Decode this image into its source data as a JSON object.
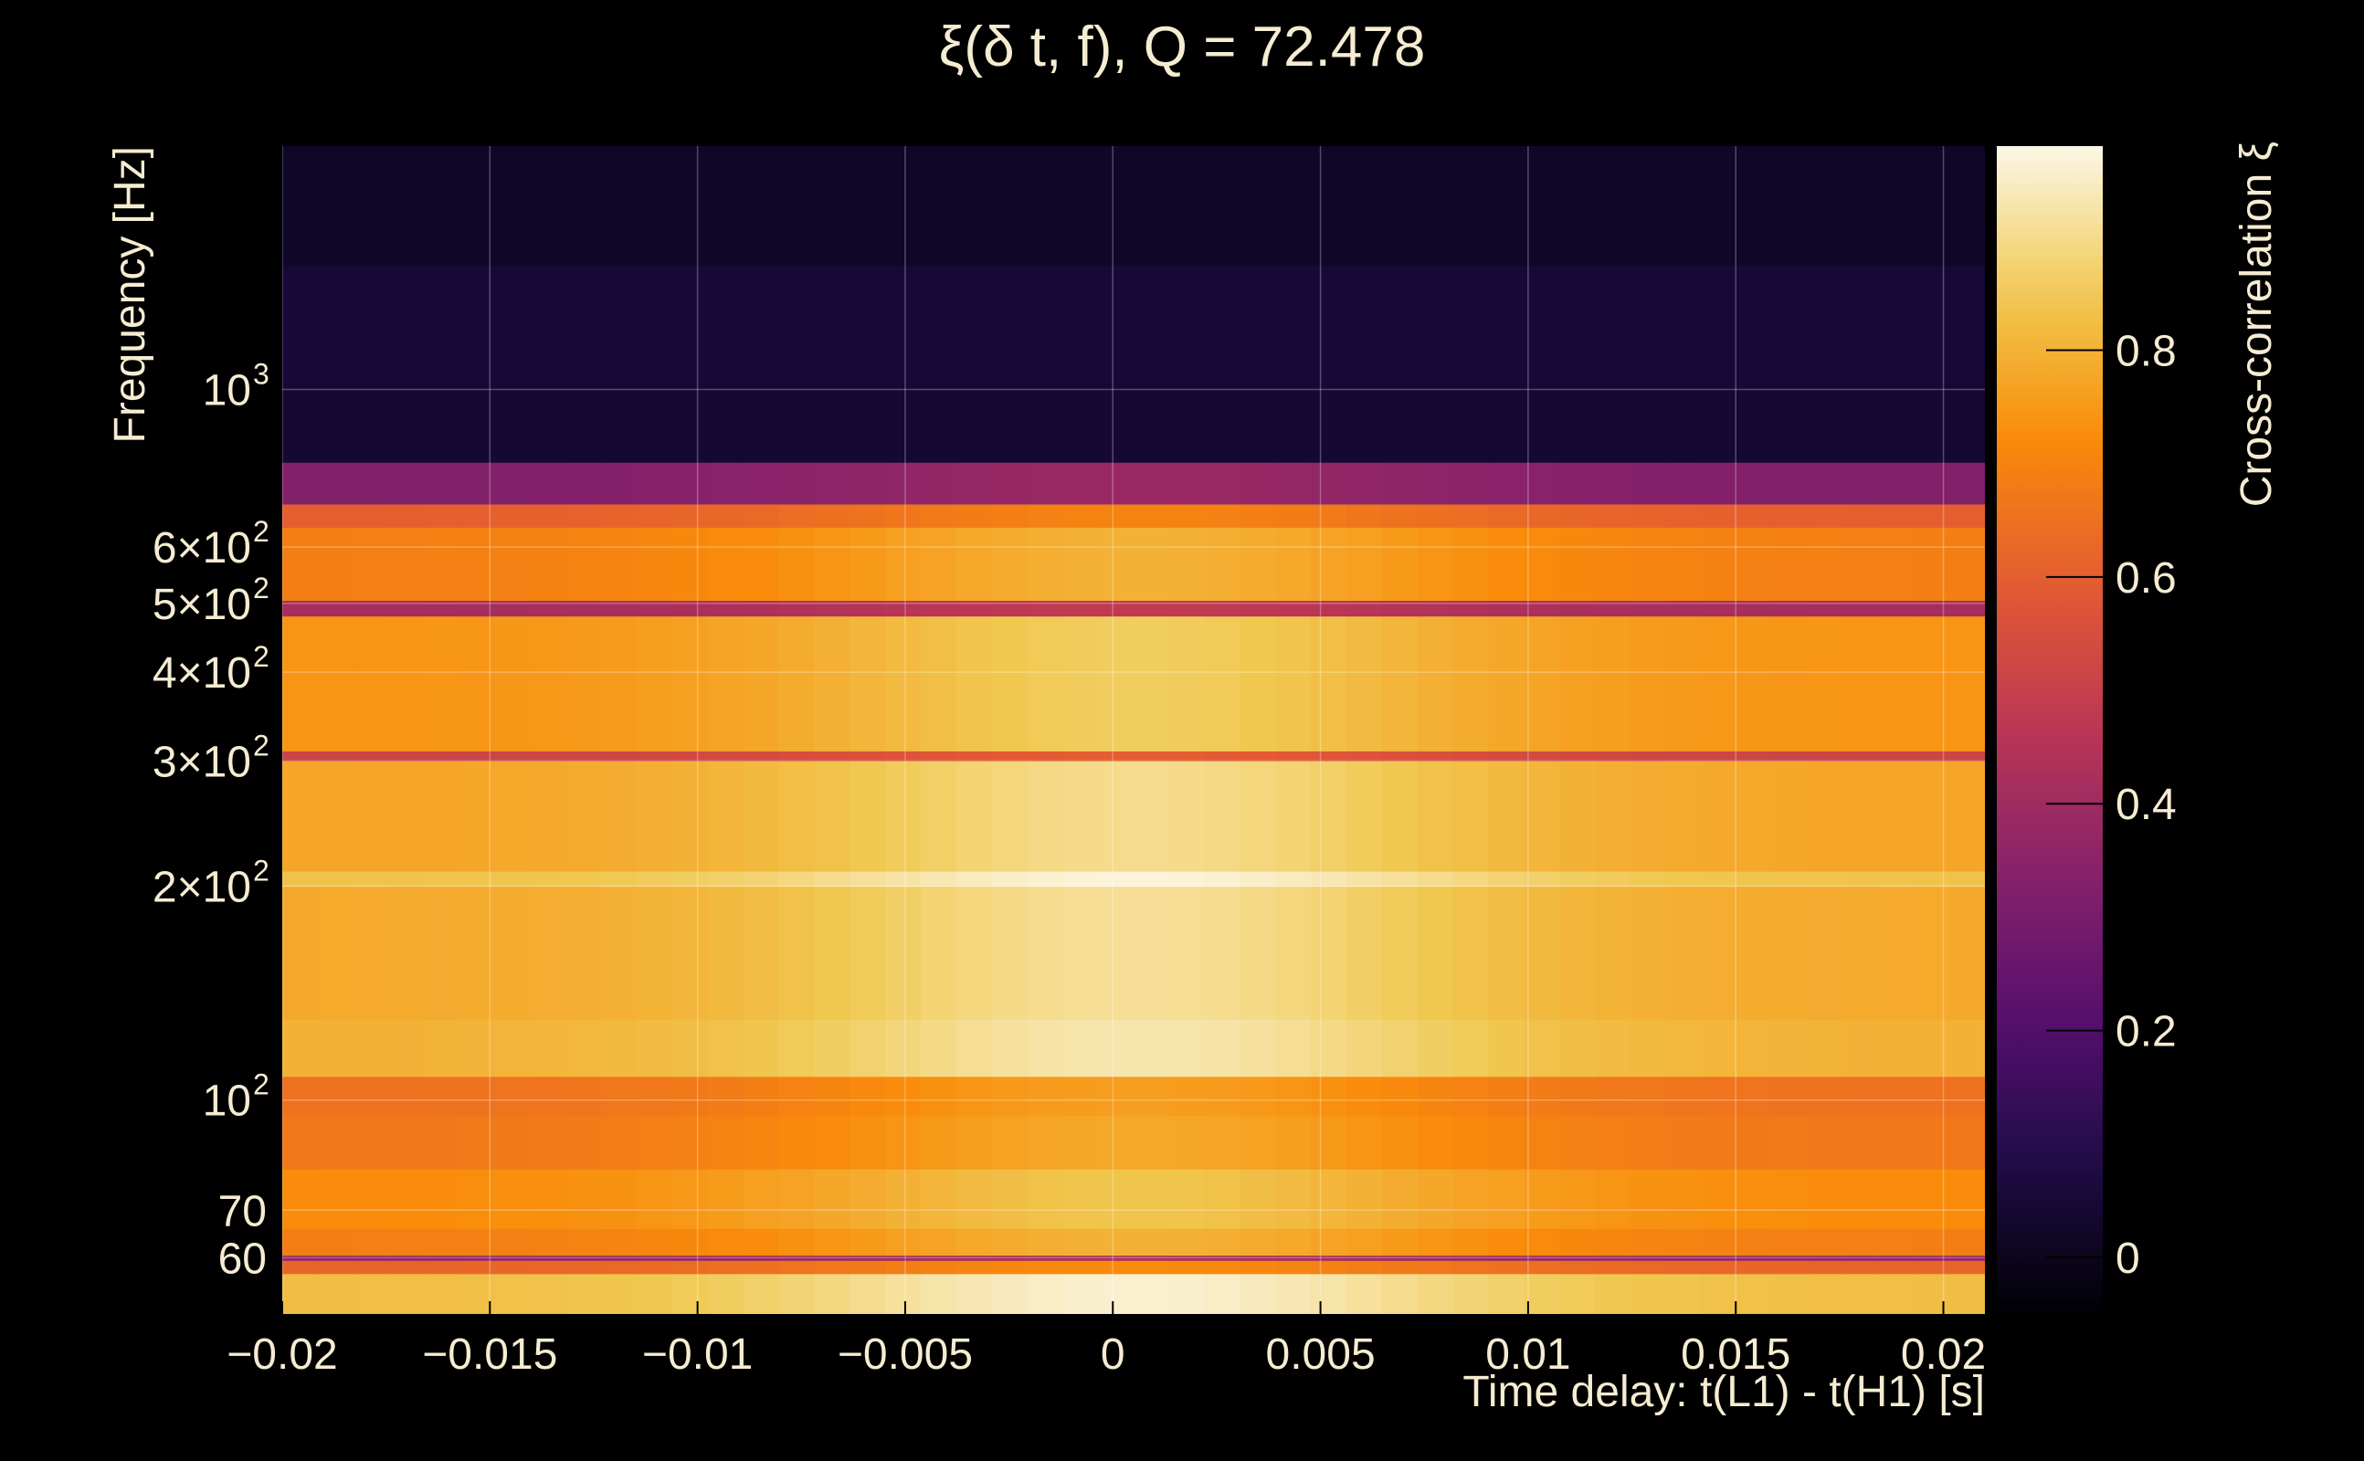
{
  "chart_data": {
    "type": "heatmap",
    "title": "ξ(δ t, f), Q = 72.478",
    "xlabel": "Time delay: t(L1) - t(H1) [s]",
    "ylabel": "Frequency [Hz]",
    "colorbar_label": "Cross-correlation ξ",
    "x_scale": "linear",
    "y_scale": "log",
    "xlim": [
      -0.02,
      0.021
    ],
    "ylim": [
      50,
      2200
    ],
    "clim": [
      -0.05,
      0.98
    ],
    "colormap": "inferno",
    "grid": true,
    "x_ticks": [
      {
        "value": -0.02,
        "label": "−0.02"
      },
      {
        "value": -0.015,
        "label": "−0.015"
      },
      {
        "value": -0.01,
        "label": "−0.01"
      },
      {
        "value": -0.005,
        "label": "−0.005"
      },
      {
        "value": 0,
        "label": "0"
      },
      {
        "value": 0.005,
        "label": "0.005"
      },
      {
        "value": 0.01,
        "label": "0.01"
      },
      {
        "value": 0.015,
        "label": "0.015"
      },
      {
        "value": 0.02,
        "label": "0.02"
      }
    ],
    "y_ticks": [
      {
        "value": 60,
        "base": "60",
        "exp": ""
      },
      {
        "value": 70,
        "base": "70",
        "exp": ""
      },
      {
        "value": 100,
        "base": "10",
        "exp": "2"
      },
      {
        "value": 200,
        "base": "2×10",
        "exp": "2"
      },
      {
        "value": 300,
        "base": "3×10",
        "exp": "2"
      },
      {
        "value": 400,
        "base": "4×10",
        "exp": "2"
      },
      {
        "value": 500,
        "base": "5×10",
        "exp": "2"
      },
      {
        "value": 600,
        "base": "6×10",
        "exp": "2"
      },
      {
        "value": 1000,
        "base": "10",
        "exp": "3"
      }
    ],
    "colorbar_ticks": [
      {
        "value": 0,
        "label": "0"
      },
      {
        "value": 0.2,
        "label": "0.2"
      },
      {
        "value": 0.4,
        "label": "0.4"
      },
      {
        "value": 0.6,
        "label": "0.6"
      },
      {
        "value": 0.8,
        "label": "0.8"
      }
    ],
    "frequency_bands": [
      {
        "f_min": 50,
        "f_max": 57,
        "value": 0.96
      },
      {
        "f_min": 57,
        "f_max": 59.5,
        "value": 0.72
      },
      {
        "f_min": 59.5,
        "f_max": 60.5,
        "value": 0.42
      },
      {
        "f_min": 60.5,
        "f_max": 66,
        "value": 0.8
      },
      {
        "f_min": 66,
        "f_max": 80,
        "value": 0.84
      },
      {
        "f_min": 80,
        "f_max": 95,
        "value": 0.78
      },
      {
        "f_min": 95,
        "f_max": 108,
        "value": 0.76
      },
      {
        "f_min": 108,
        "f_max": 130,
        "value": 0.93
      },
      {
        "f_min": 130,
        "f_max": 200,
        "value": 0.91
      },
      {
        "f_min": 200,
        "f_max": 210,
        "value": 0.97
      },
      {
        "f_min": 210,
        "f_max": 300,
        "value": 0.9
      },
      {
        "f_min": 300,
        "f_max": 310,
        "value": 0.6
      },
      {
        "f_min": 310,
        "f_max": 480,
        "value": 0.86
      },
      {
        "f_min": 480,
        "f_max": 505,
        "value": 0.48
      },
      {
        "f_min": 505,
        "f_max": 640,
        "value": 0.8
      },
      {
        "f_min": 640,
        "f_max": 690,
        "value": 0.7
      },
      {
        "f_min": 690,
        "f_max": 790,
        "value": 0.38
      },
      {
        "f_min": 790,
        "f_max": 1020,
        "value": 0.04
      },
      {
        "f_min": 1020,
        "f_max": 1500,
        "value": 0.05
      },
      {
        "f_min": 1500,
        "f_max": 2200,
        "value": 0.02
      }
    ],
    "peak_delay": 0.0005
  }
}
